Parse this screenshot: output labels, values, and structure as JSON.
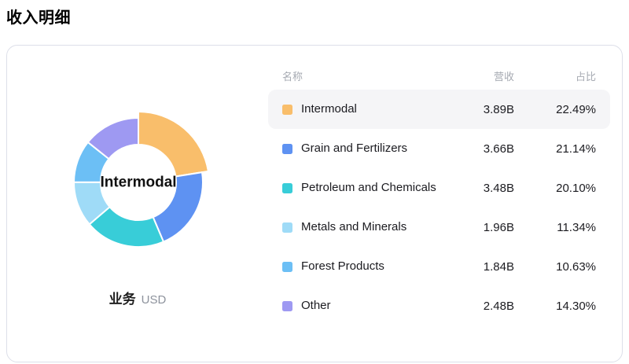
{
  "page_title": "收入明细",
  "card": {
    "caption": {
      "dimension": "业务",
      "unit": "USD"
    }
  },
  "table": {
    "headers": {
      "name": "名称",
      "revenue": "营收",
      "share": "占比"
    }
  },
  "chart_data": {
    "type": "pie",
    "subtype": "donut",
    "title": "收入明细",
    "center_label": "Intermodal",
    "selected_slice": "Intermodal",
    "unit": "USD",
    "dimension_label": "业务",
    "start_angle_deg": 0,
    "direction": "clockwise",
    "legend_position": "table-right",
    "series": [
      {
        "name": "Intermodal",
        "revenue": "3.89B",
        "share": "22.49%",
        "value": 22.49,
        "color": "#F9BE6B"
      },
      {
        "name": "Grain and Fertilizers",
        "revenue": "3.66B",
        "share": "21.14%",
        "value": 21.14,
        "color": "#5E92F2"
      },
      {
        "name": "Petroleum and Chemicals",
        "revenue": "3.48B",
        "share": "20.10%",
        "value": 20.1,
        "color": "#38CDD8"
      },
      {
        "name": "Metals and Minerals",
        "revenue": "1.96B",
        "share": "11.34%",
        "value": 11.34,
        "color": "#9FDBF7"
      },
      {
        "name": "Forest Products",
        "revenue": "1.84B",
        "share": "10.63%",
        "value": 10.63,
        "color": "#6CBFF5"
      },
      {
        "name": "Other",
        "revenue": "2.48B",
        "share": "14.30%",
        "value": 14.3,
        "color": "#9E99F2"
      }
    ]
  }
}
